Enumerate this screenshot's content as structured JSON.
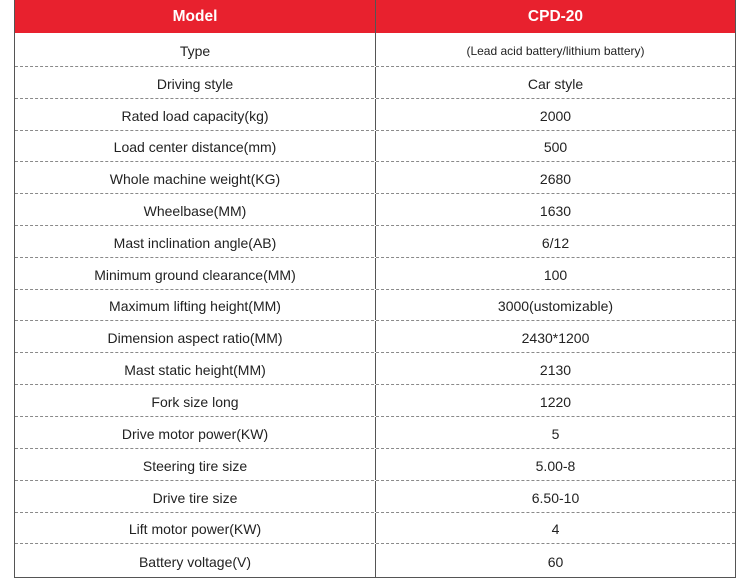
{
  "header": {
    "param_label": "Model",
    "value_label": "CPD-20"
  },
  "rows": [
    {
      "param": "Type",
      "value": "(Lead acid battery/lithium battery)"
    },
    {
      "param": "Driving style",
      "value": "Car style"
    },
    {
      "param": "Rated load capacity(kg)",
      "value": "2000"
    },
    {
      "param": "Load center distance(mm)",
      "value": "500"
    },
    {
      "param": "Whole machine weight(KG)",
      "value": "2680"
    },
    {
      "param": "Wheelbase(MM)",
      "value": "1630"
    },
    {
      "param": "Mast inclination angle(AB)",
      "value": "6/12"
    },
    {
      "param": "Minimum ground clearance(MM)",
      "value": "100"
    },
    {
      "param": "Maximum lifting height(MM)",
      "value": "3000(ustomizable)"
    },
    {
      "param": "Dimension aspect ratio(MM)",
      "value": "2430*1200"
    },
    {
      "param": "Mast static height(MM)",
      "value": "2130"
    },
    {
      "param": "Fork size long",
      "value": "1220"
    },
    {
      "param": "Drive motor power(KW)",
      "value": "5"
    },
    {
      "param": "Steering tire size",
      "value": "5.00-8"
    },
    {
      "param": "Drive tire size",
      "value": "6.50-10"
    },
    {
      "param": "Lift motor power(KW)",
      "value": "4"
    },
    {
      "param": "Battery voltage(V)",
      "value": "60"
    }
  ],
  "colors": {
    "header_bg": "#e8212e",
    "header_text": "#ffffff",
    "border": "#555555"
  }
}
